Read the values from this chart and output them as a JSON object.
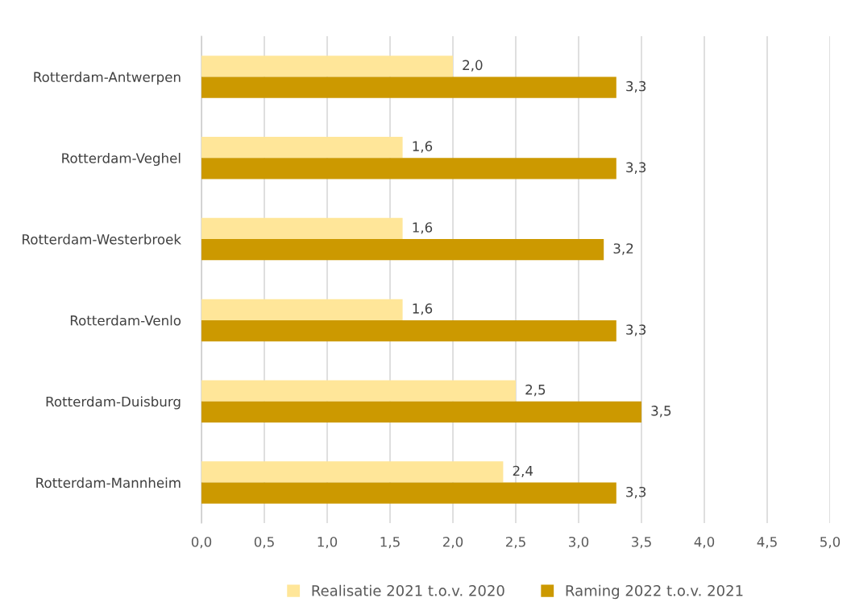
{
  "chart_data": {
    "type": "bar",
    "orientation": "horizontal",
    "categories": [
      "Rotterdam-Antwerpen",
      "Rotterdam-Veghel",
      "Rotterdam-Westerbroek",
      "Rotterdam-Venlo",
      "Rotterdam-Duisburg",
      "Rotterdam-Mannheim"
    ],
    "series": [
      {
        "name": "Realisatie 2021 t.o.v. 2020",
        "color": "#ffe699",
        "values": [
          2.0,
          1.6,
          1.6,
          1.6,
          2.5,
          2.4
        ],
        "value_labels": [
          "2,0",
          "1,6",
          "1,6",
          "1,6",
          "2,5",
          "2,4"
        ]
      },
      {
        "name": "Raming 2022 t.o.v. 2021",
        "color": "#cc9900",
        "values": [
          3.3,
          3.3,
          3.2,
          3.3,
          3.5,
          3.3
        ],
        "value_labels": [
          "3,3",
          "3,3",
          "3,2",
          "3,3",
          "3,5",
          "3,3"
        ]
      }
    ],
    "xlim": [
      0,
      5
    ],
    "xticks": [
      {
        "value": 0,
        "label": "0,0"
      },
      {
        "value": 0.5,
        "label": "0,5"
      },
      {
        "value": 1,
        "label": "1,0"
      },
      {
        "value": 1.5,
        "label": "1,5"
      },
      {
        "value": 2,
        "label": "2,0"
      },
      {
        "value": 2.5,
        "label": "2,5"
      },
      {
        "value": 3,
        "label": "3,0"
      },
      {
        "value": 3.5,
        "label": "3,5"
      },
      {
        "value": 4,
        "label": "4,0"
      },
      {
        "value": 4.5,
        "label": "4,5"
      },
      {
        "value": 5,
        "label": "5,0"
      }
    ],
    "grid": "x",
    "legend": "bottom"
  }
}
